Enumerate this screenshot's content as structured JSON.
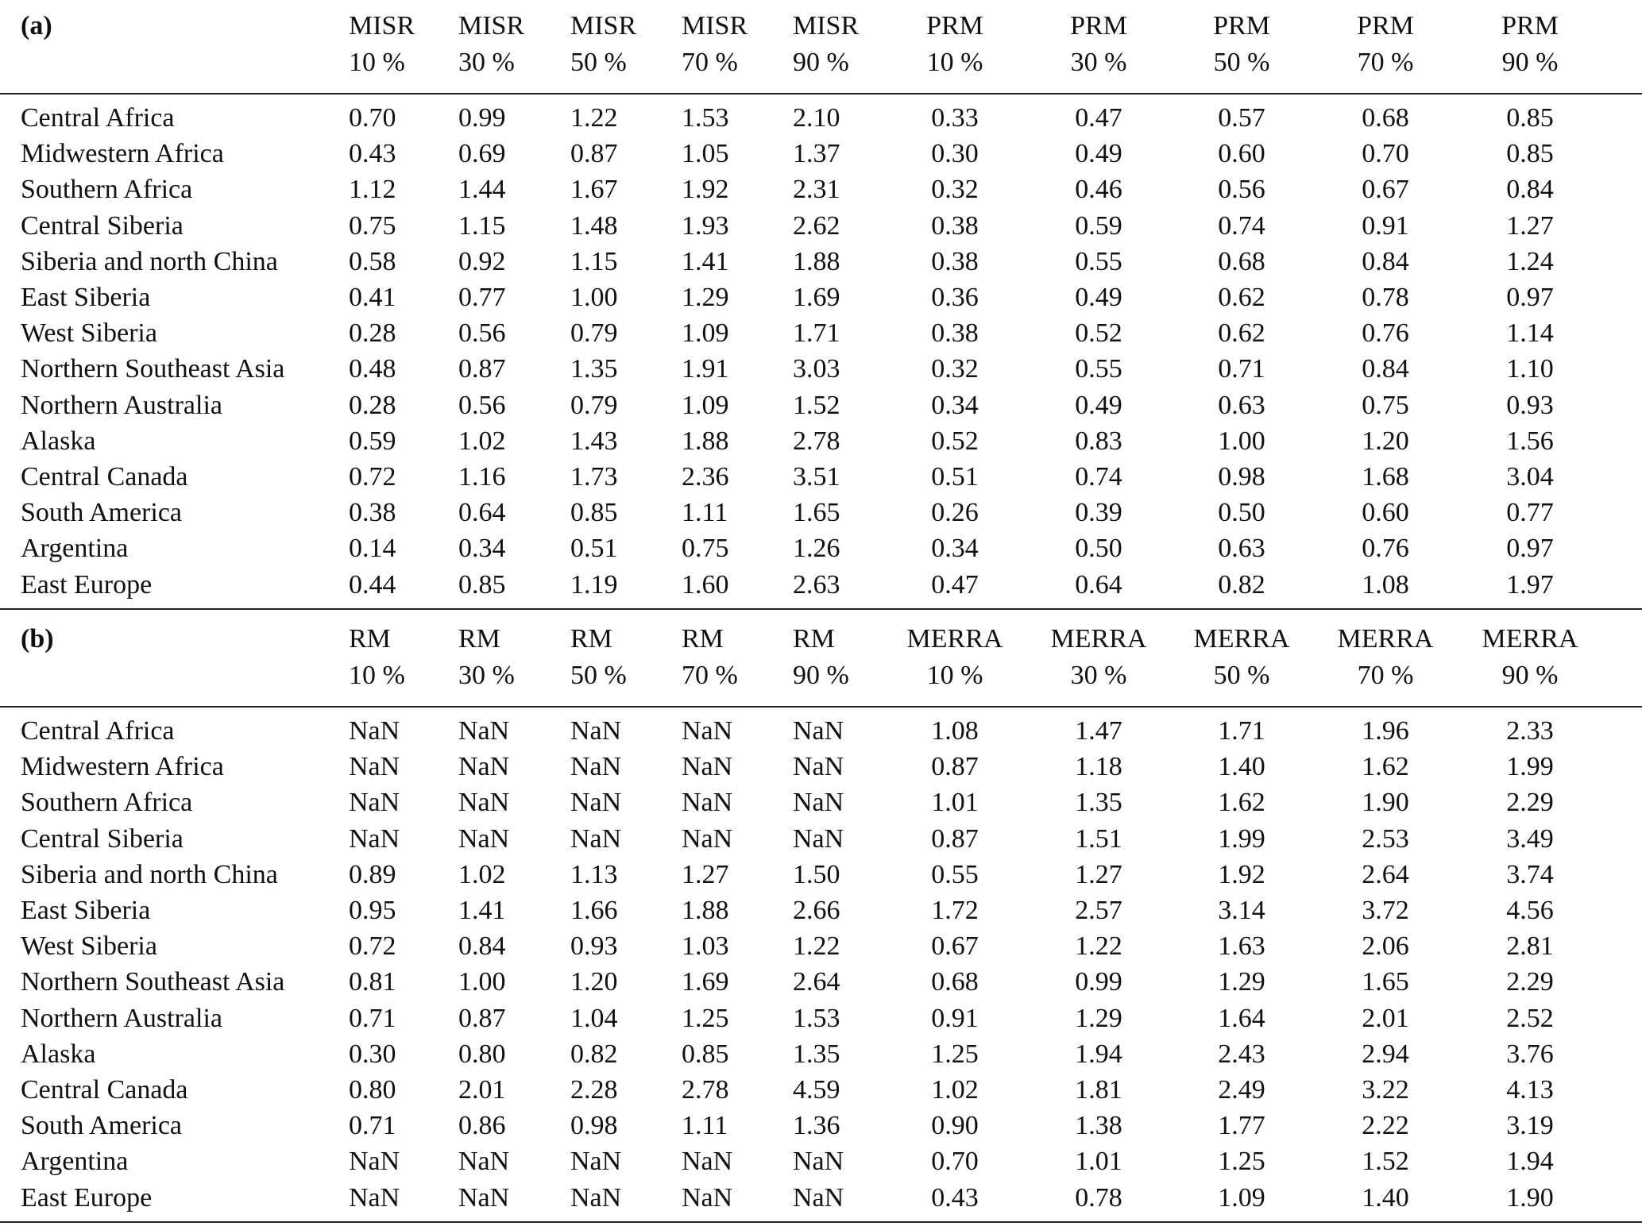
{
  "table": {
    "panels": [
      {
        "label": "(a)",
        "columns": [
          [
            "MISR",
            "10 %"
          ],
          [
            "MISR",
            "30 %"
          ],
          [
            "MISR",
            "50 %"
          ],
          [
            "MISR",
            "70 %"
          ],
          [
            "MISR",
            "90 %"
          ],
          [
            "PRM",
            "10 %"
          ],
          [
            "PRM",
            "30 %"
          ],
          [
            "PRM",
            "50 %"
          ],
          [
            "PRM",
            "70 %"
          ],
          [
            "PRM",
            "90 %"
          ]
        ],
        "rows": [
          {
            "region": "Central Africa",
            "values": [
              "0.70",
              "0.99",
              "1.22",
              "1.53",
              "2.10",
              "0.33",
              "0.47",
              "0.57",
              "0.68",
              "0.85"
            ]
          },
          {
            "region": "Midwestern Africa",
            "values": [
              "0.43",
              "0.69",
              "0.87",
              "1.05",
              "1.37",
              "0.30",
              "0.49",
              "0.60",
              "0.70",
              "0.85"
            ]
          },
          {
            "region": "Southern Africa",
            "values": [
              "1.12",
              "1.44",
              "1.67",
              "1.92",
              "2.31",
              "0.32",
              "0.46",
              "0.56",
              "0.67",
              "0.84"
            ]
          },
          {
            "region": "Central Siberia",
            "values": [
              "0.75",
              "1.15",
              "1.48",
              "1.93",
              "2.62",
              "0.38",
              "0.59",
              "0.74",
              "0.91",
              "1.27"
            ]
          },
          {
            "region": "Siberia and north China",
            "values": [
              "0.58",
              "0.92",
              "1.15",
              "1.41",
              "1.88",
              "0.38",
              "0.55",
              "0.68",
              "0.84",
              "1.24"
            ]
          },
          {
            "region": "East Siberia",
            "values": [
              "0.41",
              "0.77",
              "1.00",
              "1.29",
              "1.69",
              "0.36",
              "0.49",
              "0.62",
              "0.78",
              "0.97"
            ]
          },
          {
            "region": "West Siberia",
            "values": [
              "0.28",
              "0.56",
              "0.79",
              "1.09",
              "1.71",
              "0.38",
              "0.52",
              "0.62",
              "0.76",
              "1.14"
            ]
          },
          {
            "region": "Northern Southeast Asia",
            "values": [
              "0.48",
              "0.87",
              "1.35",
              "1.91",
              "3.03",
              "0.32",
              "0.55",
              "0.71",
              "0.84",
              "1.10"
            ]
          },
          {
            "region": "Northern Australia",
            "values": [
              "0.28",
              "0.56",
              "0.79",
              "1.09",
              "1.52",
              "0.34",
              "0.49",
              "0.63",
              "0.75",
              "0.93"
            ]
          },
          {
            "region": "Alaska",
            "values": [
              "0.59",
              "1.02",
              "1.43",
              "1.88",
              "2.78",
              "0.52",
              "0.83",
              "1.00",
              "1.20",
              "1.56"
            ]
          },
          {
            "region": "Central Canada",
            "values": [
              "0.72",
              "1.16",
              "1.73",
              "2.36",
              "3.51",
              "0.51",
              "0.74",
              "0.98",
              "1.68",
              "3.04"
            ]
          },
          {
            "region": "South America",
            "values": [
              "0.38",
              "0.64",
              "0.85",
              "1.11",
              "1.65",
              "0.26",
              "0.39",
              "0.50",
              "0.60",
              "0.77"
            ]
          },
          {
            "region": "Argentina",
            "values": [
              "0.14",
              "0.34",
              "0.51",
              "0.75",
              "1.26",
              "0.34",
              "0.50",
              "0.63",
              "0.76",
              "0.97"
            ]
          },
          {
            "region": "East Europe",
            "values": [
              "0.44",
              "0.85",
              "1.19",
              "1.60",
              "2.63",
              "0.47",
              "0.64",
              "0.82",
              "1.08",
              "1.97"
            ]
          }
        ]
      },
      {
        "label": "(b)",
        "columns": [
          [
            "RM",
            "10 %"
          ],
          [
            "RM",
            "30 %"
          ],
          [
            "RM",
            "50 %"
          ],
          [
            "RM",
            "70 %"
          ],
          [
            "RM",
            "90 %"
          ],
          [
            "MERRA",
            "10 %"
          ],
          [
            "MERRA",
            "30 %"
          ],
          [
            "MERRA",
            "50 %"
          ],
          [
            "MERRA",
            "70 %"
          ],
          [
            "MERRA",
            "90 %"
          ]
        ],
        "rows": [
          {
            "region": "Central Africa",
            "values": [
              "NaN",
              "NaN",
              "NaN",
              "NaN",
              "NaN",
              "1.08",
              "1.47",
              "1.71",
              "1.96",
              "2.33"
            ]
          },
          {
            "region": "Midwestern Africa",
            "values": [
              "NaN",
              "NaN",
              "NaN",
              "NaN",
              "NaN",
              "0.87",
              "1.18",
              "1.40",
              "1.62",
              "1.99"
            ]
          },
          {
            "region": "Southern Africa",
            "values": [
              "NaN",
              "NaN",
              "NaN",
              "NaN",
              "NaN",
              "1.01",
              "1.35",
              "1.62",
              "1.90",
              "2.29"
            ]
          },
          {
            "region": "Central Siberia",
            "values": [
              "NaN",
              "NaN",
              "NaN",
              "NaN",
              "NaN",
              "0.87",
              "1.51",
              "1.99",
              "2.53",
              "3.49"
            ]
          },
          {
            "region": "Siberia and north China",
            "values": [
              "0.89",
              "1.02",
              "1.13",
              "1.27",
              "1.50",
              "0.55",
              "1.27",
              "1.92",
              "2.64",
              "3.74"
            ]
          },
          {
            "region": "East Siberia",
            "values": [
              "0.95",
              "1.41",
              "1.66",
              "1.88",
              "2.66",
              "1.72",
              "2.57",
              "3.14",
              "3.72",
              "4.56"
            ]
          },
          {
            "region": "West Siberia",
            "values": [
              "0.72",
              "0.84",
              "0.93",
              "1.03",
              "1.22",
              "0.67",
              "1.22",
              "1.63",
              "2.06",
              "2.81"
            ]
          },
          {
            "region": "Northern Southeast Asia",
            "values": [
              "0.81",
              "1.00",
              "1.20",
              "1.69",
              "2.64",
              "0.68",
              "0.99",
              "1.29",
              "1.65",
              "2.29"
            ]
          },
          {
            "region": "Northern Australia",
            "values": [
              "0.71",
              "0.87",
              "1.04",
              "1.25",
              "1.53",
              "0.91",
              "1.29",
              "1.64",
              "2.01",
              "2.52"
            ]
          },
          {
            "region": "Alaska",
            "values": [
              "0.30",
              "0.80",
              "0.82",
              "0.85",
              "1.35",
              "1.25",
              "1.94",
              "2.43",
              "2.94",
              "3.76"
            ]
          },
          {
            "region": "Central Canada",
            "values": [
              "0.80",
              "2.01",
              "2.28",
              "2.78",
              "4.59",
              "1.02",
              "1.81",
              "2.49",
              "3.22",
              "4.13"
            ]
          },
          {
            "region": "South America",
            "values": [
              "0.71",
              "0.86",
              "0.98",
              "1.11",
              "1.36",
              "0.90",
              "1.38",
              "1.77",
              "2.22",
              "3.19"
            ]
          },
          {
            "region": "Argentina",
            "values": [
              "NaN",
              "NaN",
              "NaN",
              "NaN",
              "NaN",
              "0.70",
              "1.01",
              "1.25",
              "1.52",
              "1.94"
            ]
          },
          {
            "region": "East Europe",
            "values": [
              "NaN",
              "NaN",
              "NaN",
              "NaN",
              "NaN",
              "0.43",
              "0.78",
              "1.09",
              "1.40",
              "1.90"
            ]
          }
        ]
      }
    ]
  }
}
